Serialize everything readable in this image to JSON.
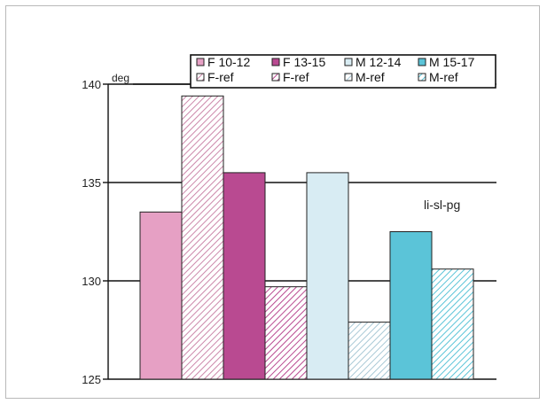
{
  "chart_data": {
    "type": "bar",
    "title": "",
    "xlabel": "",
    "ylabel": "",
    "unit": "deg",
    "annotation": "li-sl-pg",
    "ylim": [
      125,
      140
    ],
    "yticks": [
      125,
      130,
      135,
      140
    ],
    "grid": "horizontal",
    "legend_position": "top-right",
    "series": [
      {
        "name": "F 10-12",
        "value": 133.5,
        "color": "#e6a0c4",
        "pattern": "solid"
      },
      {
        "name": "F-ref",
        "value": 139.4,
        "color": "#cc88aa",
        "pattern": "hatch"
      },
      {
        "name": "F 13-15",
        "value": 135.5,
        "color": "#b94a91",
        "pattern": "solid"
      },
      {
        "name": "F-ref",
        "value": 129.7,
        "color": "#b94a91",
        "pattern": "hatch"
      },
      {
        "name": "M 12-14",
        "value": 135.5,
        "color": "#d8ecf3",
        "pattern": "solid"
      },
      {
        "name": "M-ref",
        "value": 127.9,
        "color": "#a9c9d6",
        "pattern": "hatch"
      },
      {
        "name": "M 15-17",
        "value": 132.5,
        "color": "#5bc4d8",
        "pattern": "solid"
      },
      {
        "name": "M-ref",
        "value": 130.6,
        "color": "#5bc4d8",
        "pattern": "hatch"
      }
    ]
  }
}
